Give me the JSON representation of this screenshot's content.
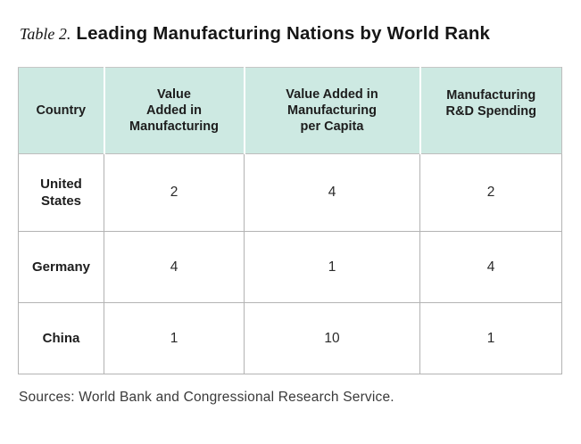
{
  "title": {
    "label": "Table 2.",
    "text": "Leading Manufacturing Nations by World Rank"
  },
  "table": {
    "columns": [
      {
        "label": "Country",
        "lines": [
          "Country"
        ]
      },
      {
        "label": "Value Added in Manufacturing",
        "lines": [
          "Value",
          "Added in",
          "Manufacturing"
        ]
      },
      {
        "label": "Value Added in Manufacturing per Capita",
        "lines": [
          "Value Added in",
          "Manufacturing",
          "per Capita"
        ]
      },
      {
        "label": "Manufacturing R&D Spending",
        "lines": [
          "Manufacturing",
          "R&D Spending"
        ]
      }
    ],
    "rows": [
      {
        "country": "United States",
        "values": [
          "2",
          "4",
          "2"
        ]
      },
      {
        "country": "Germany",
        "values": [
          "4",
          "1",
          "4"
        ]
      },
      {
        "country": "China",
        "values": [
          "1",
          "10",
          "1"
        ]
      }
    ]
  },
  "source_note": "Sources: World Bank and Congressional Research Service.",
  "colors": {
    "header_bg": "#cde9e2",
    "cell_border": "#b3b3b3",
    "text": "#1d1d1d",
    "source_text": "#3a3a3a",
    "background": "#ffffff"
  }
}
